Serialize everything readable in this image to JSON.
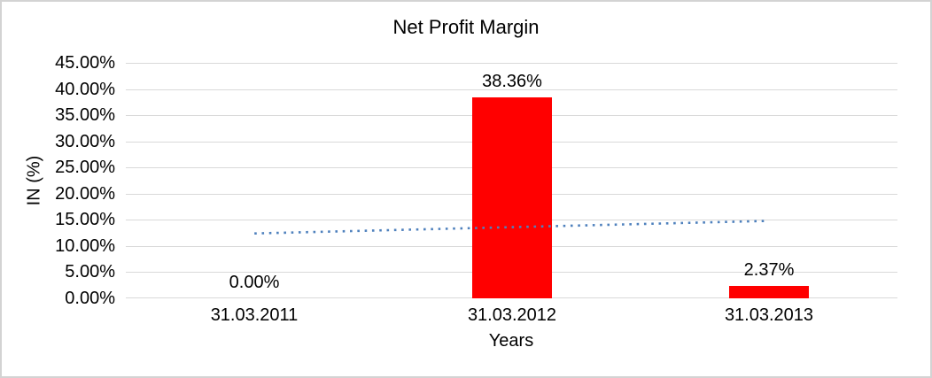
{
  "frame": {
    "background": "#ffffff",
    "border_color": "#d3d3d3"
  },
  "chart_data": {
    "type": "bar",
    "title": "Net Profit Margin",
    "xlabel": "Years",
    "ylabel": "IN (%)",
    "categories": [
      "31.03.2011",
      "31.03.2012",
      "31.03.2013"
    ],
    "series": [
      {
        "name": "Net Profit Margin",
        "values": [
          0.0,
          38.36,
          2.37
        ],
        "data_labels": [
          "0.00%",
          "38.36%",
          "2.37%"
        ],
        "color": "#ff0000"
      }
    ],
    "ylim": [
      0,
      45
    ],
    "yticks": [
      {
        "value": 0,
        "label": "0.00%"
      },
      {
        "value": 5,
        "label": "5.00%"
      },
      {
        "value": 10,
        "label": "10.00%"
      },
      {
        "value": 15,
        "label": "15.00%"
      },
      {
        "value": 20,
        "label": "20.00%"
      },
      {
        "value": 25,
        "label": "25.00%"
      },
      {
        "value": 30,
        "label": "30.00%"
      },
      {
        "value": 35,
        "label": "35.00%"
      },
      {
        "value": 40,
        "label": "40.00%"
      },
      {
        "value": 45,
        "label": "45.00%"
      }
    ],
    "grid": true,
    "gridline_color": "#d9d9d9",
    "legend": "none",
    "trendline": {
      "type": "linear",
      "style": "dotted",
      "color": "#4f81bd",
      "start_value": 12.4,
      "end_value": 14.8
    }
  }
}
